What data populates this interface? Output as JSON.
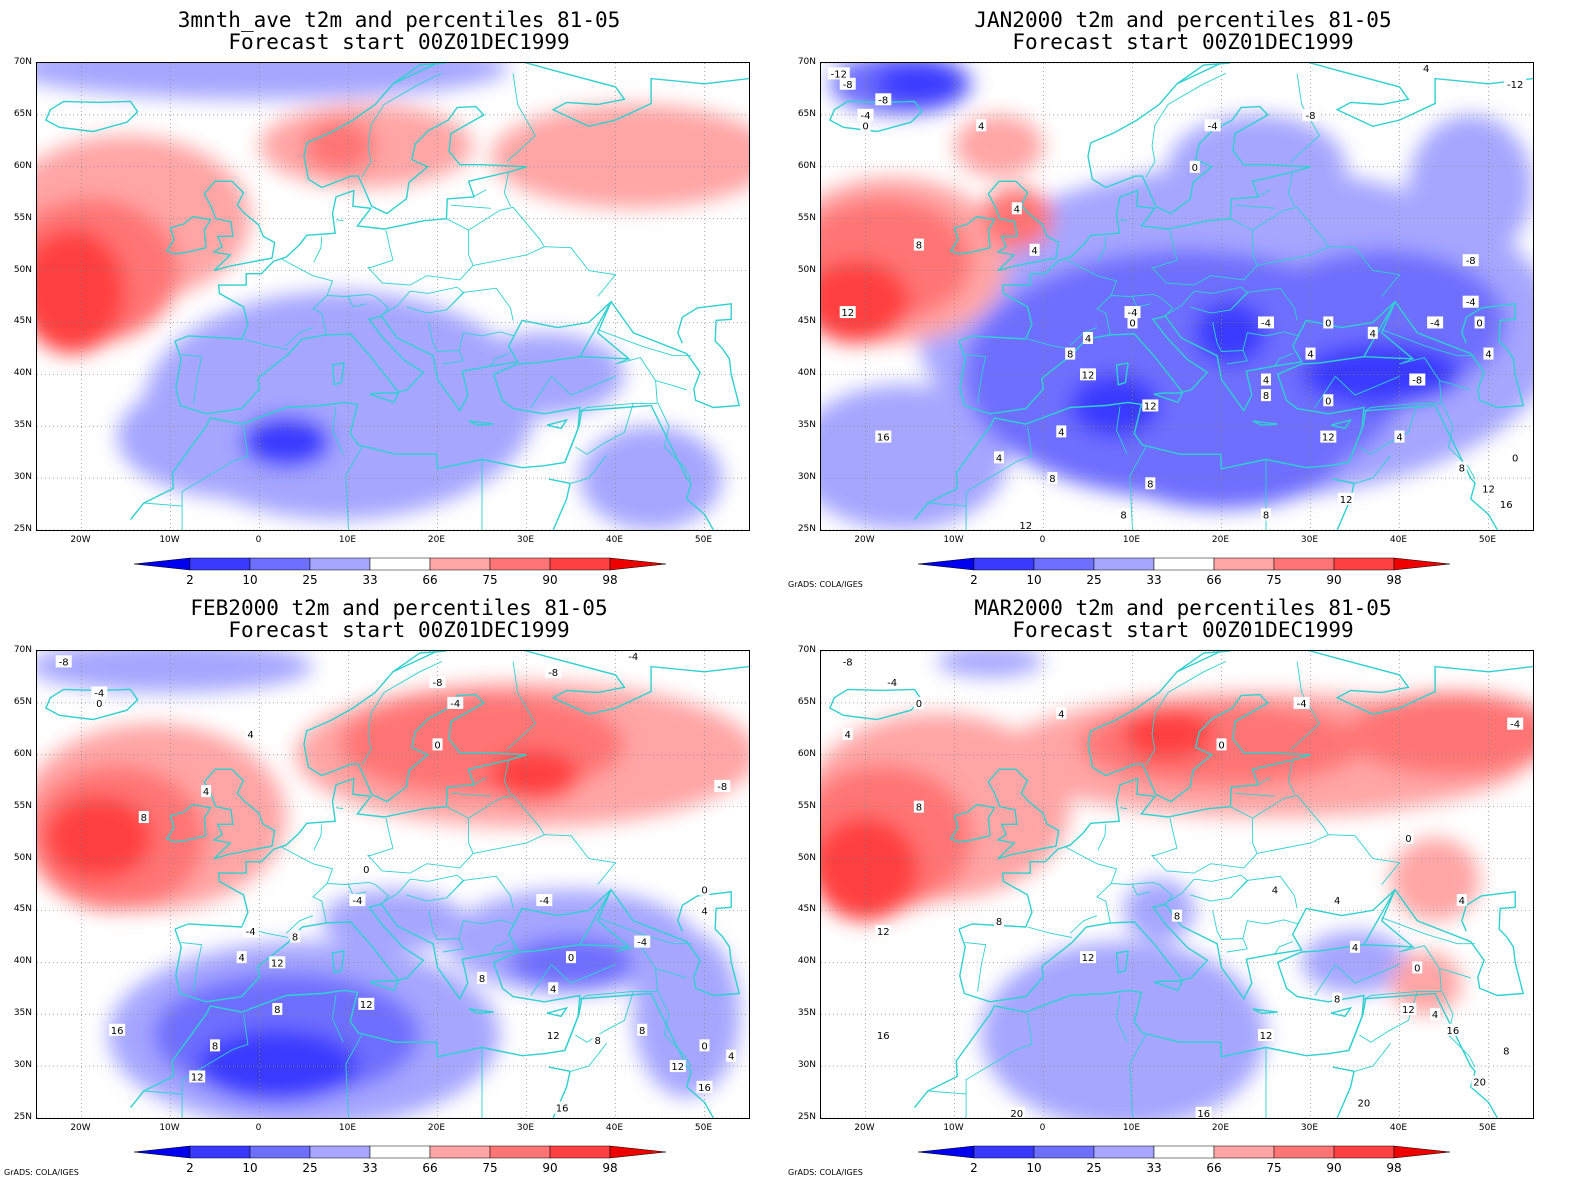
{
  "panels": [
    {
      "title1": "3mnth_ave t2m and percentiles 81-05",
      "title2": "Forecast start 00Z01DEC1999",
      "credit": "",
      "contours": [],
      "blobs": [
        {
          "c": "cold1",
          "lon": -2,
          "lat": 34,
          "rx": 14,
          "ry": 6
        },
        {
          "c": "cold2",
          "lon": 5,
          "lat": 37,
          "rx": 15,
          "ry": 8
        },
        {
          "c": "cold1",
          "lon": 9,
          "lat": 37,
          "rx": 22,
          "ry": 11
        },
        {
          "c": "cold1",
          "lon": 32,
          "lat": 40,
          "rx": 9,
          "ry": 4
        },
        {
          "c": "cold1",
          "lon": 0,
          "lat": 69.5,
          "rx": 28,
          "ry": 3
        },
        {
          "c": "cold1",
          "lon": 44,
          "lat": 30,
          "rx": 8,
          "ry": 5
        },
        {
          "c": "cold3",
          "lon": 3,
          "lat": 33.5,
          "rx": 5,
          "ry": 2.5
        },
        {
          "c": "warm1",
          "lon": -15,
          "lat": 55,
          "rx": 14,
          "ry": 8
        },
        {
          "c": "warm1",
          "lon": 12,
          "lat": 62,
          "rx": 12,
          "ry": 4
        },
        {
          "c": "warm1",
          "lon": 42,
          "lat": 61,
          "rx": 16,
          "ry": 5
        },
        {
          "c": "warm2",
          "lon": -19,
          "lat": 50,
          "rx": 10,
          "ry": 7
        },
        {
          "c": "warm3",
          "lon": -21,
          "lat": 48,
          "rx": 6,
          "ry": 6
        },
        {
          "c": "warm2",
          "lon": 9,
          "lat": 62,
          "rx": 4,
          "ry": 2.5
        }
      ]
    },
    {
      "title1": "JAN2000 t2m and percentiles 81-05",
      "title2": "Forecast start 00Z01DEC1999",
      "credit": "GrADS: COLA/IGES",
      "contours": [
        {
          "t": "-4",
          "lon": 10,
          "lat": 46
        },
        {
          "t": "0",
          "lon": 10,
          "lat": 45
        },
        {
          "t": "4",
          "lon": 5,
          "lat": 43.5
        },
        {
          "t": "8",
          "lon": 3,
          "lat": 42
        },
        {
          "t": "12",
          "lon": 5,
          "lat": 40
        },
        {
          "t": "4",
          "lon": 2,
          "lat": 34.5
        },
        {
          "t": "4",
          "lon": -5,
          "lat": 32
        },
        {
          "t": "8",
          "lon": 1,
          "lat": 30
        },
        {
          "t": "12",
          "lon": 12,
          "lat": 37
        },
        {
          "t": "-4",
          "lon": 25,
          "lat": 45
        },
        {
          "t": "0",
          "lon": 32,
          "lat": 45
        },
        {
          "t": "4",
          "lon": 37,
          "lat": 44
        },
        {
          "t": "4",
          "lon": 30,
          "lat": 42
        },
        {
          "t": "-4",
          "lon": 44,
          "lat": 45
        },
        {
          "t": "-8",
          "lon": 42,
          "lat": 39.5
        },
        {
          "t": "0",
          "lon": 32,
          "lat": 37.5
        },
        {
          "t": "8",
          "lon": 25,
          "lat": 38
        },
        {
          "t": "4",
          "lon": 25,
          "lat": 39.5
        },
        {
          "t": "12",
          "lon": 32,
          "lat": 34
        },
        {
          "t": "4",
          "lon": 40,
          "lat": 34
        },
        {
          "t": "12",
          "lon": 34,
          "lat": 28
        },
        {
          "t": "8",
          "lon": 12,
          "lat": 29.5
        },
        {
          "t": "8",
          "lon": 25,
          "lat": 26.5
        },
        {
          "t": "8",
          "lon": 9,
          "lat": 26.5
        },
        {
          "t": "12",
          "lon": -2,
          "lat": 25.5
        },
        {
          "t": "16",
          "lon": -18,
          "lat": 34
        },
        {
          "t": "12",
          "lon": -22,
          "lat": 46
        },
        {
          "t": "8",
          "lon": -14,
          "lat": 52.5
        },
        {
          "t": "4",
          "lon": -3,
          "lat": 56
        },
        {
          "t": "4",
          "lon": -1,
          "lat": 52
        },
        {
          "t": "-8",
          "lon": -18,
          "lat": 66.5
        },
        {
          "t": "-4",
          "lon": -20,
          "lat": 65
        },
        {
          "t": "0",
          "lon": -20,
          "lat": 64
        },
        {
          "t": "4",
          "lon": -7,
          "lat": 64
        },
        {
          "t": "-4",
          "lon": 19,
          "lat": 64
        },
        {
          "t": "0",
          "lon": 17,
          "lat": 60
        },
        {
          "t": "-8",
          "lon": 30,
          "lat": 65
        },
        {
          "t": "-8",
          "lon": 48,
          "lat": 51
        },
        {
          "t": "-4",
          "lon": 48,
          "lat": 47
        },
        {
          "t": "0",
          "lon": 49,
          "lat": 45
        },
        {
          "t": "4",
          "lon": 50,
          "lat": 42
        },
        {
          "t": "0",
          "lon": 53,
          "lat": 32
        },
        {
          "t": "8",
          "lon": 47,
          "lat": 31
        },
        {
          "t": "12",
          "lon": 50,
          "lat": 29
        },
        {
          "t": "16",
          "lon": 52,
          "lat": 27.5
        },
        {
          "t": "-12",
          "lon": -23,
          "lat": 69
        },
        {
          "t": "-8",
          "lon": -22,
          "lat": 68
        },
        {
          "t": "4",
          "lon": 43,
          "lat": 69.5
        },
        {
          "t": "-12",
          "lon": 53,
          "lat": 68
        }
      ],
      "blobs": [
        {
          "c": "cold1",
          "lon": -16,
          "lat": 32,
          "rx": 12,
          "ry": 7
        },
        {
          "c": "cold1",
          "lon": 22,
          "lat": 44,
          "rx": 36,
          "ry": 16
        },
        {
          "c": "cold1",
          "lon": 24,
          "lat": 60,
          "rx": 10,
          "ry": 5
        },
        {
          "c": "cold1",
          "lon": 48,
          "lat": 58,
          "rx": 7,
          "ry": 7
        },
        {
          "c": "cold2",
          "lon": 16,
          "lat": 40,
          "rx": 25,
          "ry": 12
        },
        {
          "c": "cold2",
          "lon": 38,
          "lat": 45,
          "rx": 14,
          "ry": 7
        },
        {
          "c": "cold2",
          "lon": -16,
          "lat": 68,
          "rx": 8,
          "ry": 3
        },
        {
          "c": "cold2",
          "lon": 20,
          "lat": 33,
          "rx": 14,
          "ry": 6
        },
        {
          "c": "cold3",
          "lon": 38,
          "lat": 40,
          "rx": 9,
          "ry": 3
        },
        {
          "c": "cold3",
          "lon": 21,
          "lat": 44,
          "rx": 4,
          "ry": 3
        },
        {
          "c": "cold3",
          "lon": 8,
          "lat": 37,
          "rx": 5,
          "ry": 3
        },
        {
          "c": "cold3",
          "lon": -14,
          "lat": 68,
          "rx": 5,
          "ry": 2
        },
        {
          "c": "warm1",
          "lon": -17,
          "lat": 51,
          "rx": 13,
          "ry": 8
        },
        {
          "c": "warm1",
          "lon": -5,
          "lat": 62,
          "rx": 5,
          "ry": 3
        },
        {
          "c": "warm2",
          "lon": -18,
          "lat": 51,
          "rx": 10,
          "ry": 6
        },
        {
          "c": "warm3",
          "lon": -21,
          "lat": 47,
          "rx": 6,
          "ry": 4
        },
        {
          "c": "warm2",
          "lon": -3,
          "lat": 55,
          "rx": 4,
          "ry": 3
        }
      ]
    },
    {
      "title1": "FEB2000 t2m and percentiles 81-05",
      "title2": "Forecast start 00Z01DEC1999",
      "credit": "GrADS: COLA/IGES",
      "contours": [
        {
          "t": "-8",
          "lon": -22,
          "lat": 69
        },
        {
          "t": "-4",
          "lon": -18,
          "lat": 66
        },
        {
          "t": "0",
          "lon": -18,
          "lat": 65
        },
        {
          "t": "4",
          "lon": -1,
          "lat": 62
        },
        {
          "t": "8",
          "lon": -13,
          "lat": 54
        },
        {
          "t": "4",
          "lon": -6,
          "lat": 56.5
        },
        {
          "t": "-8",
          "lon": 20,
          "lat": 67
        },
        {
          "t": "-4",
          "lon": 22,
          "lat": 65
        },
        {
          "t": "0",
          "lon": 20,
          "lat": 61
        },
        {
          "t": "-8",
          "lon": 33,
          "lat": 68
        },
        {
          "t": "-4",
          "lon": 42,
          "lat": 69.5
        },
        {
          "t": "-8",
          "lon": 52,
          "lat": 57
        },
        {
          "t": "0",
          "lon": 12,
          "lat": 49
        },
        {
          "t": "-4",
          "lon": 11,
          "lat": 46
        },
        {
          "t": "-4",
          "lon": 32,
          "lat": 46
        },
        {
          "t": "0",
          "lon": 50,
          "lat": 47
        },
        {
          "t": "4",
          "lon": 50,
          "lat": 45
        },
        {
          "t": "-4",
          "lon": 43,
          "lat": 42
        },
        {
          "t": "0",
          "lon": 35,
          "lat": 40.5
        },
        {
          "t": "4",
          "lon": 33,
          "lat": 37.5
        },
        {
          "t": "8",
          "lon": 25,
          "lat": 38.5
        },
        {
          "t": "-4",
          "lon": -1,
          "lat": 43
        },
        {
          "t": "4",
          "lon": -2,
          "lat": 40.5
        },
        {
          "t": "8",
          "lon": 4,
          "lat": 42.5
        },
        {
          "t": "12",
          "lon": 2,
          "lat": 40
        },
        {
          "t": "8",
          "lon": 2,
          "lat": 35.5
        },
        {
          "t": "12",
          "lon": 12,
          "lat": 36
        },
        {
          "t": "8",
          "lon": -5,
          "lat": 32
        },
        {
          "t": "12",
          "lon": -7,
          "lat": 29
        },
        {
          "t": "16",
          "lon": -16,
          "lat": 33.5
        },
        {
          "t": "12",
          "lon": 33,
          "lat": 33
        },
        {
          "t": "8",
          "lon": 43,
          "lat": 33.5
        },
        {
          "t": "0",
          "lon": 50,
          "lat": 32
        },
        {
          "t": "4",
          "lon": 53,
          "lat": 31
        },
        {
          "t": "12",
          "lon": 47,
          "lat": 30
        },
        {
          "t": "16",
          "lon": 50,
          "lat": 28
        },
        {
          "t": "16",
          "lon": 34,
          "lat": 26
        },
        {
          "t": "8",
          "lon": 38,
          "lat": 32.5
        }
      ],
      "blobs": [
        {
          "c": "cold1",
          "lon": 5,
          "lat": 33,
          "rx": 22,
          "ry": 9
        },
        {
          "c": "cold1",
          "lon": 35,
          "lat": 42,
          "rx": 14,
          "ry": 5
        },
        {
          "c": "cold1",
          "lon": -10,
          "lat": 68.5,
          "rx": 16,
          "ry": 2.5
        },
        {
          "c": "cold1",
          "lon": 48,
          "lat": 35,
          "rx": 6,
          "ry": 8
        },
        {
          "c": "cold1",
          "lon": 15,
          "lat": 44,
          "rx": 8,
          "ry": 3
        },
        {
          "c": "cold2",
          "lon": 3,
          "lat": 33,
          "rx": 15,
          "ry": 6
        },
        {
          "c": "cold2",
          "lon": 35,
          "lat": 40,
          "rx": 7,
          "ry": 2.5
        },
        {
          "c": "cold3",
          "lon": 2,
          "lat": 30,
          "rx": 9,
          "ry": 3.5
        },
        {
          "c": "warm1",
          "lon": -12,
          "lat": 54,
          "rx": 15,
          "ry": 9
        },
        {
          "c": "warm1",
          "lon": 30,
          "lat": 60,
          "rx": 26,
          "ry": 7
        },
        {
          "c": "warm2",
          "lon": -16,
          "lat": 52,
          "rx": 10,
          "ry": 7
        },
        {
          "c": "warm2",
          "lon": 25,
          "lat": 61,
          "rx": 16,
          "ry": 5
        },
        {
          "c": "warm3",
          "lon": -18,
          "lat": 52,
          "rx": 6,
          "ry": 4
        },
        {
          "c": "warm3",
          "lon": 31,
          "lat": 58,
          "rx": 5,
          "ry": 2.5
        }
      ]
    },
    {
      "title1": "MAR2000 t2m and percentiles 81-05",
      "title2": "Forecast start 00Z01DEC1999",
      "credit": "GrADS: COLA/IGES",
      "contours": [
        {
          "t": "-8",
          "lon": -22,
          "lat": 69
        },
        {
          "t": "-4",
          "lon": -17,
          "lat": 67
        },
        {
          "t": "0",
          "lon": -14,
          "lat": 65
        },
        {
          "t": "4",
          "lon": -22,
          "lat": 62
        },
        {
          "t": "4",
          "lon": 2,
          "lat": 64
        },
        {
          "t": "0",
          "lon": 20,
          "lat": 61
        },
        {
          "t": "8",
          "lon": -14,
          "lat": 55
        },
        {
          "t": "-4",
          "lon": 29,
          "lat": 65
        },
        {
          "t": "-4",
          "lon": 53,
          "lat": 63
        },
        {
          "t": "0",
          "lon": 41,
          "lat": 52
        },
        {
          "t": "4",
          "lon": 26,
          "lat": 47
        },
        {
          "t": "4",
          "lon": 33,
          "lat": 46
        },
        {
          "t": "4",
          "lon": 47,
          "lat": 46
        },
        {
          "t": "8",
          "lon": -5,
          "lat": 44
        },
        {
          "t": "12",
          "lon": -18,
          "lat": 43
        },
        {
          "t": "8",
          "lon": 15,
          "lat": 44.5
        },
        {
          "t": "12",
          "lon": 5,
          "lat": 40.5
        },
        {
          "t": "4",
          "lon": 35,
          "lat": 41.5
        },
        {
          "t": "0",
          "lon": 42,
          "lat": 39.5
        },
        {
          "t": "8",
          "lon": 33,
          "lat": 36.5
        },
        {
          "t": "12",
          "lon": 41,
          "lat": 35.5
        },
        {
          "t": "12",
          "lon": 25,
          "lat": 33
        },
        {
          "t": "4",
          "lon": 44,
          "lat": 35
        },
        {
          "t": "16",
          "lon": 46,
          "lat": 33.5
        },
        {
          "t": "8",
          "lon": 52,
          "lat": 31.5
        },
        {
          "t": "16",
          "lon": -18,
          "lat": 33
        },
        {
          "t": "20",
          "lon": -3,
          "lat": 25.5
        },
        {
          "t": "16",
          "lon": 18,
          "lat": 25.5
        },
        {
          "t": "20",
          "lon": 36,
          "lat": 26.5
        },
        {
          "t": "20",
          "lon": 49,
          "lat": 28.5
        }
      ],
      "blobs": [
        {
          "c": "cold1",
          "lon": 9,
          "lat": 33,
          "rx": 16,
          "ry": 9
        },
        {
          "c": "cold1",
          "lon": 35,
          "lat": 40,
          "rx": 6,
          "ry": 3
        },
        {
          "c": "cold1",
          "lon": 13,
          "lat": 45,
          "rx": 4,
          "ry": 3
        },
        {
          "c": "cold1",
          "lon": -6,
          "lat": 69,
          "rx": 6,
          "ry": 1.5
        },
        {
          "c": "warm1",
          "lon": -12,
          "lat": 55,
          "rx": 15,
          "ry": 9
        },
        {
          "c": "warm1",
          "lon": 25,
          "lat": 60,
          "rx": 30,
          "ry": 6
        },
        {
          "c": "warm1",
          "lon": 44,
          "lat": 48,
          "rx": 5,
          "ry": 4
        },
        {
          "c": "warm1",
          "lon": 43,
          "lat": 38,
          "rx": 4,
          "ry": 3
        },
        {
          "c": "warm2",
          "lon": -18,
          "lat": 52,
          "rx": 10,
          "ry": 7
        },
        {
          "c": "warm2",
          "lon": 20,
          "lat": 61,
          "rx": 16,
          "ry": 4
        },
        {
          "c": "warm2",
          "lon": 46,
          "lat": 62,
          "rx": 12,
          "ry": 4
        },
        {
          "c": "warm3",
          "lon": -20,
          "lat": 49,
          "rx": 6,
          "ry": 5
        },
        {
          "c": "warm3",
          "lon": 14,
          "lat": 62,
          "rx": 5,
          "ry": 2.5
        }
      ]
    }
  ],
  "axes": {
    "lat_labels": [
      "70N",
      "65N",
      "60N",
      "55N",
      "50N",
      "45N",
      "40N",
      "35N",
      "30N",
      "25N"
    ],
    "lat_values": [
      70,
      65,
      60,
      55,
      50,
      45,
      40,
      35,
      30,
      25
    ],
    "lon_labels": [
      "20W",
      "10W",
      "0",
      "10E",
      "20E",
      "30E",
      "40E",
      "50E"
    ],
    "lon_values": [
      -20,
      -10,
      0,
      10,
      20,
      30,
      40,
      50
    ],
    "lon_range": [
      -25,
      55
    ],
    "lat_range": [
      25,
      70
    ]
  },
  "colorbar": {
    "labels": [
      "2",
      "10",
      "25",
      "33",
      "66",
      "75",
      "90",
      "98"
    ],
    "colors": [
      "#0000ee",
      "#3a3aff",
      "#6e6eff",
      "#a6a6ff",
      "#ffffff",
      "#ffa5a5",
      "#ff7575",
      "#ff4040",
      "#ee0000"
    ]
  },
  "fills": {
    "cold1": "#a6a6ff",
    "cold2": "#6e6eff",
    "cold3": "#3a3aff",
    "warm1": "#ffa5a5",
    "warm2": "#ff7575",
    "warm3": "#ff4040",
    "coast": "#2fd0d0"
  }
}
